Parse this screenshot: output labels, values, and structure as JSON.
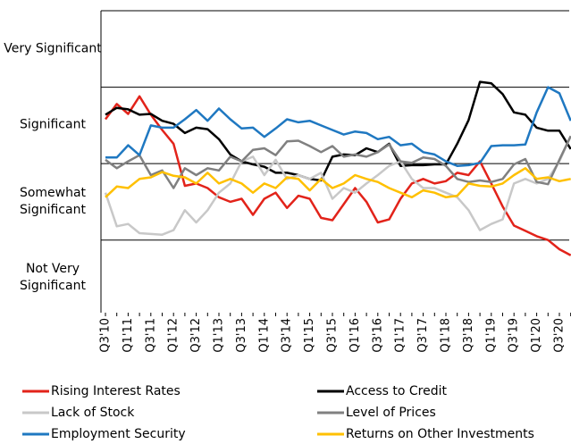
{
  "chart_data": {
    "type": "line",
    "categories": [
      "Q3'10",
      null,
      "Q1'11",
      null,
      "Q3'11",
      null,
      "Q1'12",
      null,
      "Q3'12",
      null,
      "Q1'13",
      null,
      "Q3'13",
      null,
      "Q1'14",
      null,
      "Q3'14",
      null,
      "Q1'15",
      null,
      "Q3'15",
      null,
      "Q1'16",
      null,
      "Q3'16",
      null,
      "Q1'17",
      null,
      "Q3'17",
      null,
      "Q1'18",
      null,
      "Q3'18",
      null,
      "Q1'19",
      null,
      "Q3'19",
      null,
      "Q1'20",
      null,
      "Q3'20",
      null
    ],
    "ylim": [
      0.55,
      4.5
    ],
    "yticks": [
      {
        "value": 4,
        "label": "Very Significant"
      },
      {
        "value": 3,
        "label": "Significant"
      },
      {
        "value": 2,
        "label": "Somewhat Significant"
      },
      {
        "value": 1,
        "label": "Not Very Significant"
      }
    ],
    "ygrid": [
      1.5,
      2.5,
      3.5
    ],
    "series": [
      {
        "name": "Rising Interest Rates",
        "color": "#e2231a",
        "values": [
          3.08,
          3.28,
          3.15,
          3.38,
          3.14,
          2.94,
          2.76,
          2.21,
          2.24,
          2.18,
          2.06,
          2.0,
          2.04,
          1.83,
          2.04,
          2.12,
          1.92,
          2.08,
          2.04,
          1.79,
          1.76,
          1.97,
          2.18,
          2.0,
          1.73,
          1.77,
          2.04,
          2.24,
          2.3,
          2.24,
          2.27,
          2.38,
          2.35,
          2.53,
          2.24,
          1.94,
          1.69,
          1.62,
          1.55,
          1.5,
          1.38,
          1.3
        ]
      },
      {
        "name": "Access to Credit",
        "color": "#000000",
        "values": [
          3.14,
          3.23,
          3.21,
          3.14,
          3.15,
          3.06,
          3.02,
          2.9,
          2.97,
          2.95,
          2.82,
          2.62,
          2.53,
          2.49,
          2.46,
          2.38,
          2.38,
          2.35,
          2.3,
          2.28,
          2.59,
          2.62,
          2.61,
          2.7,
          2.65,
          2.76,
          2.47,
          2.48,
          2.48,
          2.49,
          2.49,
          2.76,
          3.07,
          3.57,
          3.55,
          3.41,
          3.17,
          3.14,
          2.97,
          2.93,
          2.93,
          2.69
        ]
      },
      {
        "name": "Lack of Stock",
        "color": "#c8c8c8",
        "values": [
          2.12,
          1.68,
          1.71,
          1.59,
          1.58,
          1.57,
          1.63,
          1.89,
          1.73,
          1.89,
          2.12,
          2.24,
          2.53,
          2.59,
          2.35,
          2.55,
          2.3,
          2.35,
          2.3,
          2.38,
          2.04,
          2.18,
          2.12,
          2.24,
          2.35,
          2.47,
          2.53,
          2.3,
          2.18,
          2.18,
          2.12,
          2.06,
          1.89,
          1.63,
          1.71,
          1.77,
          2.24,
          2.3,
          2.24,
          2.3,
          2.53,
          2.86
        ]
      },
      {
        "name": "Level of Prices",
        "color": "#808080",
        "values": [
          2.55,
          2.44,
          2.53,
          2.61,
          2.35,
          2.41,
          2.18,
          2.44,
          2.35,
          2.44,
          2.41,
          2.59,
          2.53,
          2.68,
          2.7,
          2.61,
          2.79,
          2.8,
          2.73,
          2.65,
          2.73,
          2.59,
          2.62,
          2.59,
          2.65,
          2.75,
          2.53,
          2.51,
          2.58,
          2.56,
          2.47,
          2.3,
          2.26,
          2.28,
          2.26,
          2.3,
          2.49,
          2.56,
          2.26,
          2.23,
          2.55,
          2.86
        ]
      },
      {
        "name": "Employment Security",
        "color": "#1f78c1",
        "values": [
          2.58,
          2.58,
          2.74,
          2.61,
          3.0,
          2.97,
          2.97,
          3.08,
          3.2,
          3.06,
          3.22,
          3.08,
          2.96,
          2.97,
          2.85,
          2.96,
          3.08,
          3.04,
          3.06,
          3.0,
          2.94,
          2.88,
          2.92,
          2.9,
          2.82,
          2.85,
          2.74,
          2.76,
          2.65,
          2.62,
          2.53,
          2.47,
          2.48,
          2.51,
          2.73,
          2.74,
          2.74,
          2.75,
          3.17,
          3.5,
          3.42,
          3.06
        ]
      },
      {
        "name": "Returns on Other Investments",
        "color": "#ffc000",
        "values": [
          2.06,
          2.2,
          2.18,
          2.3,
          2.32,
          2.39,
          2.34,
          2.32,
          2.24,
          2.38,
          2.24,
          2.3,
          2.24,
          2.12,
          2.24,
          2.18,
          2.32,
          2.3,
          2.15,
          2.3,
          2.18,
          2.24,
          2.35,
          2.3,
          2.26,
          2.18,
          2.12,
          2.06,
          2.15,
          2.12,
          2.06,
          2.08,
          2.24,
          2.21,
          2.2,
          2.24,
          2.35,
          2.44,
          2.3,
          2.32,
          2.27,
          2.3
        ]
      }
    ]
  }
}
